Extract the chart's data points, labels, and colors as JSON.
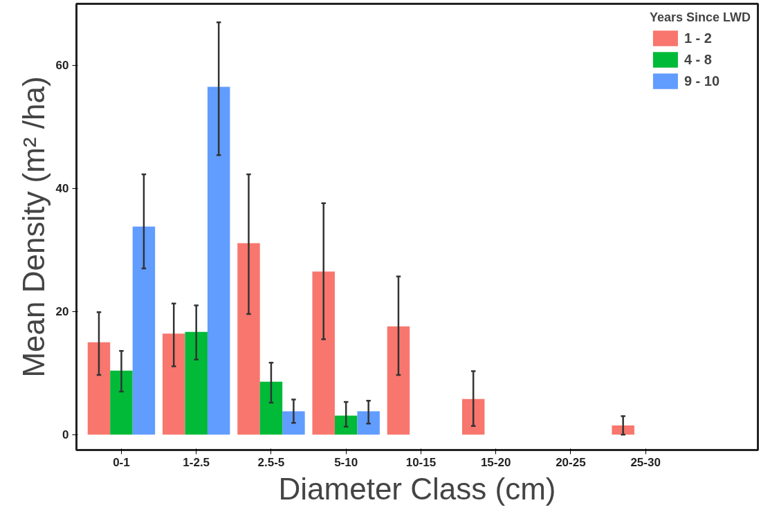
{
  "chart_data": {
    "type": "bar",
    "xlabel": "Diameter Class (cm)",
    "ylabel": "Mean Density (m² /ha)",
    "legend_title": "Years Since LWD",
    "legend": "top right",
    "grid": false,
    "categories": [
      "0-1",
      "1-2.5",
      "2.5-5",
      "5-10",
      "10-15",
      "15-20",
      "20-25",
      "25-30"
    ],
    "ylim": [
      -2.5,
      70
    ],
    "yticks": [
      0,
      20,
      40,
      60
    ],
    "series": [
      {
        "name": "1 - 2",
        "color": "#f8766d",
        "values": [
          15.0,
          16.4,
          31.1,
          26.5,
          17.6,
          5.8,
          null,
          1.5
        ],
        "errors": [
          [
            9.7,
            19.9
          ],
          [
            11.1,
            21.3
          ],
          [
            19.6,
            42.3
          ],
          [
            15.5,
            37.6
          ],
          [
            9.7,
            25.7
          ],
          [
            1.4,
            10.3
          ],
          null,
          [
            0,
            3.0
          ]
        ]
      },
      {
        "name": "4 - 8",
        "color": "#00ba38",
        "values": [
          10.4,
          16.7,
          8.6,
          3.1,
          null,
          null,
          null,
          null
        ],
        "errors": [
          [
            7.0,
            13.6
          ],
          [
            12.2,
            21.0
          ],
          [
            5.2,
            11.7
          ],
          [
            1.3,
            5.3
          ],
          null,
          null,
          null,
          null
        ]
      },
      {
        "name": "9 - 10",
        "color": "#619cff",
        "values": [
          33.8,
          56.5,
          3.8,
          3.8,
          null,
          null,
          null,
          null
        ],
        "errors": [
          [
            27.0,
            42.3
          ],
          [
            45.4,
            67.0
          ],
          [
            1.9,
            5.7
          ],
          [
            1.8,
            5.5
          ],
          null,
          null,
          null,
          null
        ]
      }
    ]
  }
}
